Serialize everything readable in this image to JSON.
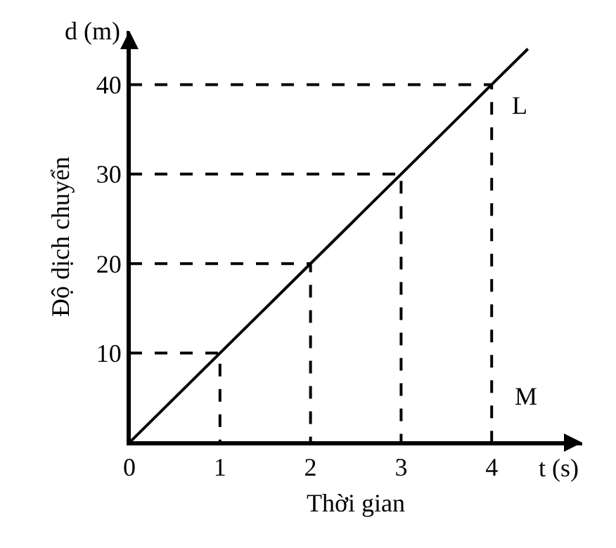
{
  "chart_data": {
    "type": "line",
    "xlabel": "Thời gian",
    "ylabel": "Độ dịch chuyển",
    "xlim": [
      0,
      5
    ],
    "ylim": [
      0,
      46
    ],
    "xticks": [
      0,
      1,
      2,
      3,
      4
    ],
    "yticks": [
      10,
      20,
      30,
      40
    ],
    "grid": false,
    "marker": "none",
    "series": [
      {
        "color": "#000000",
        "line_style": "solid",
        "x": [
          0,
          1,
          2,
          3,
          4,
          4.4
        ],
        "values": [
          0,
          10,
          20,
          30,
          40,
          44
        ]
      },
      {
        "color": "#000000",
        "line_style": "dashed",
        "x": [
          0,
          1,
          1,
          null,
          0,
          2,
          2,
          null,
          0,
          3,
          3,
          null,
          0,
          4,
          4
        ],
        "values": [
          10,
          10,
          0,
          null,
          20,
          20,
          0,
          null,
          30,
          30,
          0,
          null,
          40,
          40,
          0
        ]
      }
    ],
    "annotations": [
      "d (m)",
      "t (s)",
      "L",
      "M"
    ]
  }
}
